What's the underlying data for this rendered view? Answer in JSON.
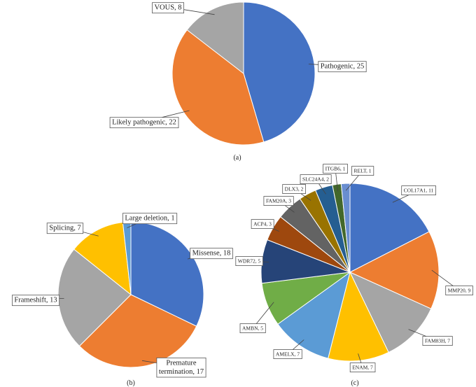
{
  "chart_data": [
    {
      "type": "pie",
      "panel": "(a)",
      "categories": [
        "Pathogenic",
        "Likely pathogenic",
        "VOUS"
      ],
      "values": [
        25,
        22,
        8
      ],
      "labels": [
        "Pathogenic, 25",
        "Likely pathogenic, 22",
        "VOUS, 8"
      ],
      "colors": [
        "#4472C4",
        "#ED7D31",
        "#A5A5A5"
      ],
      "start_angle_deg": 0,
      "direction": "clockwise"
    },
    {
      "type": "pie",
      "panel": "(b)",
      "categories": [
        "Missense",
        "Premature termination",
        "Frameshift",
        "Splicing",
        "Large deletion"
      ],
      "values": [
        18,
        17,
        13,
        7,
        1
      ],
      "labels": [
        "Missense, 18",
        "Premature termination, 17",
        "Frameshift, 13",
        "Splicing, 7",
        "Large deletion, 1"
      ],
      "colors": [
        "#4472C4",
        "#ED7D31",
        "#A5A5A5",
        "#FFC000",
        "#5B9BD5"
      ],
      "start_angle_deg": 0,
      "direction": "clockwise"
    },
    {
      "type": "pie",
      "panel": "(c)",
      "categories": [
        "COL17A1",
        "MMP20",
        "FAM83H",
        "ENAM",
        "AMELX",
        "AMBN",
        "WDR72",
        "ACP4",
        "FAM20A",
        "DLX3",
        "SLC24A4",
        "ITGB6",
        "RELT"
      ],
      "values": [
        11,
        9,
        7,
        7,
        7,
        5,
        5,
        3,
        3,
        2,
        2,
        1,
        1
      ],
      "labels": [
        "COL17A1, 11",
        "MMP20, 9",
        "FAM83H, 7",
        "ENAM, 7",
        "AMELX, 7",
        "AMBN, 5",
        "WDR72, 5",
        "ACP4, 3",
        "FAM20A, 3",
        "DLX3, 2",
        "SLC24A4, 2",
        "ITGB6, 1",
        "RELT, 1"
      ],
      "colors": [
        "#4472C4",
        "#ED7D31",
        "#A5A5A5",
        "#FFC000",
        "#5B9BD5",
        "#70AD47",
        "#264478",
        "#9E480E",
        "#636363",
        "#997300",
        "#255E91",
        "#43682B",
        "#698ED0"
      ],
      "start_angle_deg": 0,
      "direction": "clockwise"
    }
  ]
}
